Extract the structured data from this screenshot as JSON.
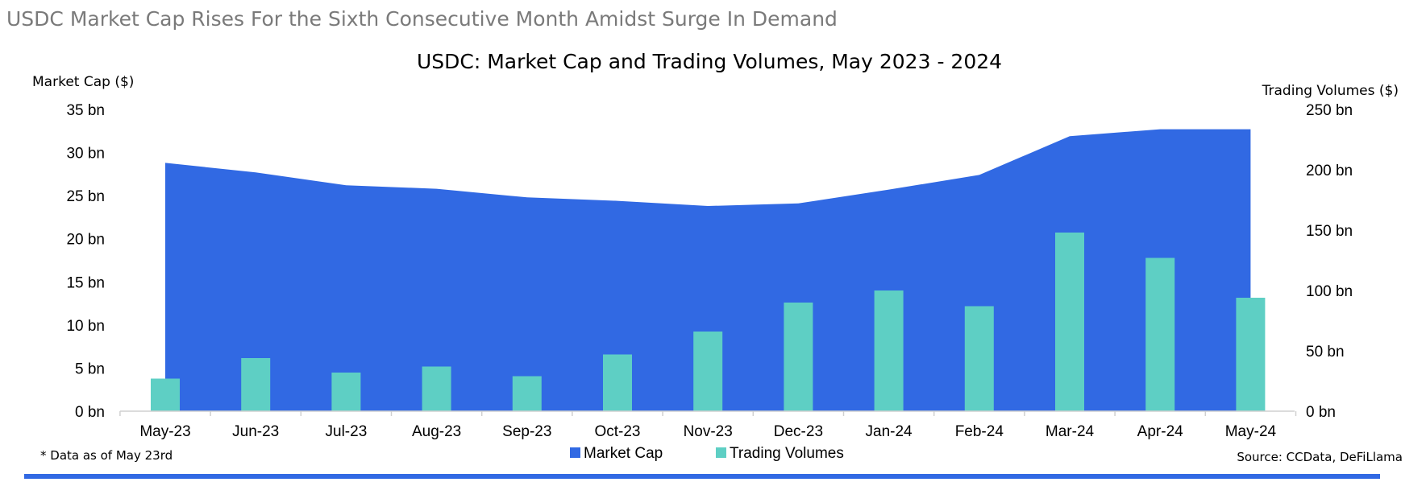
{
  "headline": "USDC Market Cap Rises For the Sixth Consecutive Month Amidst Surge In Demand",
  "footnote": "* Data as of May 23rd",
  "source": "Source: CCData, DeFiLlama",
  "colors": {
    "market_cap": "#3169E3",
    "trading_volumes": "#5ECFC4",
    "rule": "#3169E3"
  },
  "chart_data": {
    "type": "bar",
    "title": "USDC: Market Cap and Trading Volumes, May 2023 - 2024",
    "categories": [
      "May-23",
      "Jun-23",
      "Jul-23",
      "Aug-23",
      "Sep-23",
      "Oct-23",
      "Nov-23",
      "Dec-23",
      "Jan-24",
      "Feb-24",
      "Mar-24",
      "Apr-24",
      "May-24"
    ],
    "series": [
      {
        "name": "Market Cap",
        "type": "area",
        "axis": "left",
        "unit": "bn USD",
        "values": [
          28.8,
          27.7,
          26.2,
          25.8,
          24.8,
          24.4,
          23.8,
          24.1,
          25.7,
          27.4,
          31.9,
          32.7,
          32.7
        ]
      },
      {
        "name": "Trading Volumes",
        "type": "bar",
        "axis": "right",
        "unit": "bn USD",
        "values": [
          27,
          44,
          32,
          37,
          29,
          47,
          66,
          90,
          100,
          87,
          148,
          127,
          94
        ]
      }
    ],
    "ylabel": "Market Cap ($)",
    "y2label": "Trading Volumes ($)",
    "ylim": [
      0,
      35
    ],
    "y2lim": [
      0,
      250
    ],
    "yticks": [
      "0 bn",
      "5 bn",
      "10 bn",
      "15 bn",
      "20 bn",
      "25 bn",
      "30 bn",
      "35 bn"
    ],
    "y2ticks": [
      "0 bn",
      "50 bn",
      "100 bn",
      "150 bn",
      "200 bn",
      "250 bn"
    ],
    "legend": {
      "position": "bottom",
      "entries": [
        "Market Cap",
        "Trading Volumes"
      ]
    },
    "grid": false
  }
}
